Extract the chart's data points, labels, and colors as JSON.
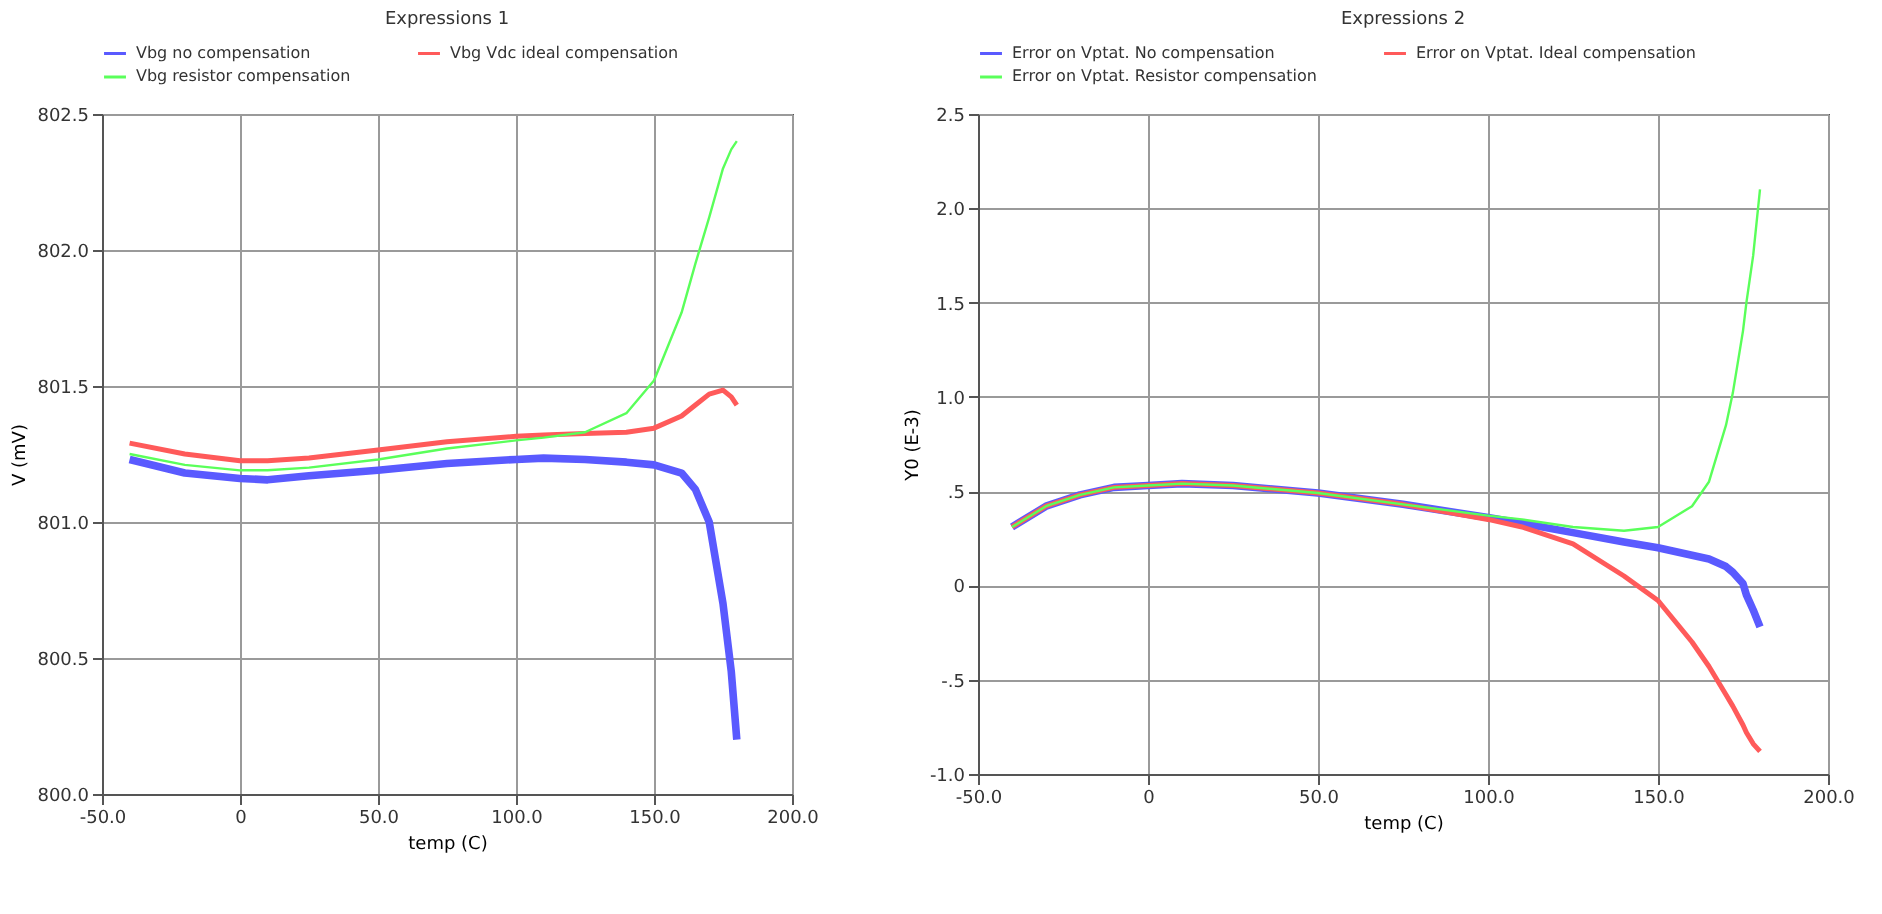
{
  "chart_data": [
    {
      "type": "line",
      "title": "Expressions 1",
      "xlabel": "temp (C)",
      "ylabel": "V (mV)",
      "legend": "top left",
      "grid": true,
      "xlim": [
        -50,
        200
      ],
      "xticks": [
        {
          "value": -50,
          "label": "-50.0"
        },
        0,
        {
          "value": 50,
          "label": "50.0"
        },
        {
          "value": 100,
          "label": "100.0"
        },
        {
          "value": 150,
          "label": "150.0"
        },
        {
          "value": 200,
          "label": "200.0"
        }
      ],
      "ylim": [
        800,
        802.5
      ],
      "yticks": [
        {
          "value": 800,
          "label": "800.0"
        },
        800.5,
        {
          "value": 801,
          "label": "801.0"
        },
        801.5,
        {
          "value": 802,
          "label": "802.0"
        },
        802.5
      ],
      "x": [
        -40,
        -20,
        0,
        10,
        25,
        50,
        75,
        100,
        110,
        125,
        140,
        150,
        160,
        165,
        170,
        175,
        178,
        180
      ],
      "series": [
        {
          "name": "Vbg no compensation",
          "color": "#5a5aff",
          "values": [
            801.23,
            801.18,
            801.16,
            801.155,
            801.17,
            801.19,
            801.215,
            801.23,
            801.235,
            801.23,
            801.22,
            801.21,
            801.18,
            801.12,
            801.0,
            800.7,
            800.45,
            800.2
          ]
        },
        {
          "name": "Vbg Vdc ideal compensation",
          "color": "#ff5a5a",
          "values": [
            801.29,
            801.25,
            801.225,
            801.225,
            801.235,
            801.265,
            801.295,
            801.315,
            801.32,
            801.325,
            801.33,
            801.345,
            801.39,
            801.43,
            801.47,
            801.485,
            801.46,
            801.43
          ]
        },
        {
          "name": "Vbg resistor compensation",
          "color": "#5aff5a",
          "values": [
            801.25,
            801.21,
            801.19,
            801.19,
            801.2,
            801.23,
            801.27,
            801.3,
            801.31,
            801.33,
            801.4,
            801.52,
            801.77,
            801.95,
            802.12,
            802.3,
            802.37,
            802.4
          ]
        }
      ]
    },
    {
      "type": "line",
      "title": "Expressions 2",
      "xlabel": "temp (C)",
      "ylabel": "Y0 (E-3)",
      "legend": "top left",
      "grid": true,
      "xlim": [
        -50,
        200
      ],
      "xticks": [
        {
          "value": -50,
          "label": "-50.0"
        },
        0,
        {
          "value": 50,
          "label": "50.0"
        },
        {
          "value": 100,
          "label": "100.0"
        },
        {
          "value": 150,
          "label": "150.0"
        },
        {
          "value": 200,
          "label": "200.0"
        }
      ],
      "ylim": [
        -1,
        2.5
      ],
      "yticks": [
        {
          "value": -1,
          "label": "-1.0"
        },
        {
          "value": -0.5,
          "label": "-.5"
        },
        0,
        {
          "value": 0.5,
          "label": ".5"
        },
        {
          "value": 1,
          "label": "1.0"
        },
        1.5,
        {
          "value": 2,
          "label": "2.0"
        },
        2.5
      ],
      "x": [
        -40,
        -30,
        -20,
        -10,
        0,
        10,
        25,
        50,
        75,
        100,
        110,
        125,
        140,
        150,
        160,
        165,
        170,
        172,
        175,
        176,
        178,
        180
      ],
      "series": [
        {
          "name": "Error on Vptat. No compensation",
          "color": "#5a5aff",
          "values": [
            0.31,
            0.42,
            0.48,
            0.52,
            0.53,
            0.54,
            0.53,
            0.49,
            0.43,
            0.36,
            0.33,
            0.28,
            0.23,
            0.2,
            0.16,
            0.14,
            0.1,
            0.07,
            0.01,
            -0.05,
            -0.13,
            -0.22
          ]
        },
        {
          "name": "Error on Vptat. Ideal compensation",
          "color": "#ff5a5a",
          "values": [
            0.31,
            0.42,
            0.48,
            0.52,
            0.53,
            0.54,
            0.53,
            0.49,
            0.43,
            0.35,
            0.31,
            0.22,
            0.05,
            -0.08,
            -0.3,
            -0.43,
            -0.58,
            -0.64,
            -0.74,
            -0.78,
            -0.84,
            -0.88
          ]
        },
        {
          "name": "Error on Vptat. Resistor compensation",
          "color": "#5aff5a",
          "values": [
            0.31,
            0.42,
            0.48,
            0.52,
            0.53,
            0.54,
            0.53,
            0.49,
            0.43,
            0.37,
            0.35,
            0.31,
            0.29,
            0.31,
            0.42,
            0.55,
            0.85,
            1.02,
            1.35,
            1.5,
            1.75,
            2.1
          ]
        }
      ]
    }
  ]
}
